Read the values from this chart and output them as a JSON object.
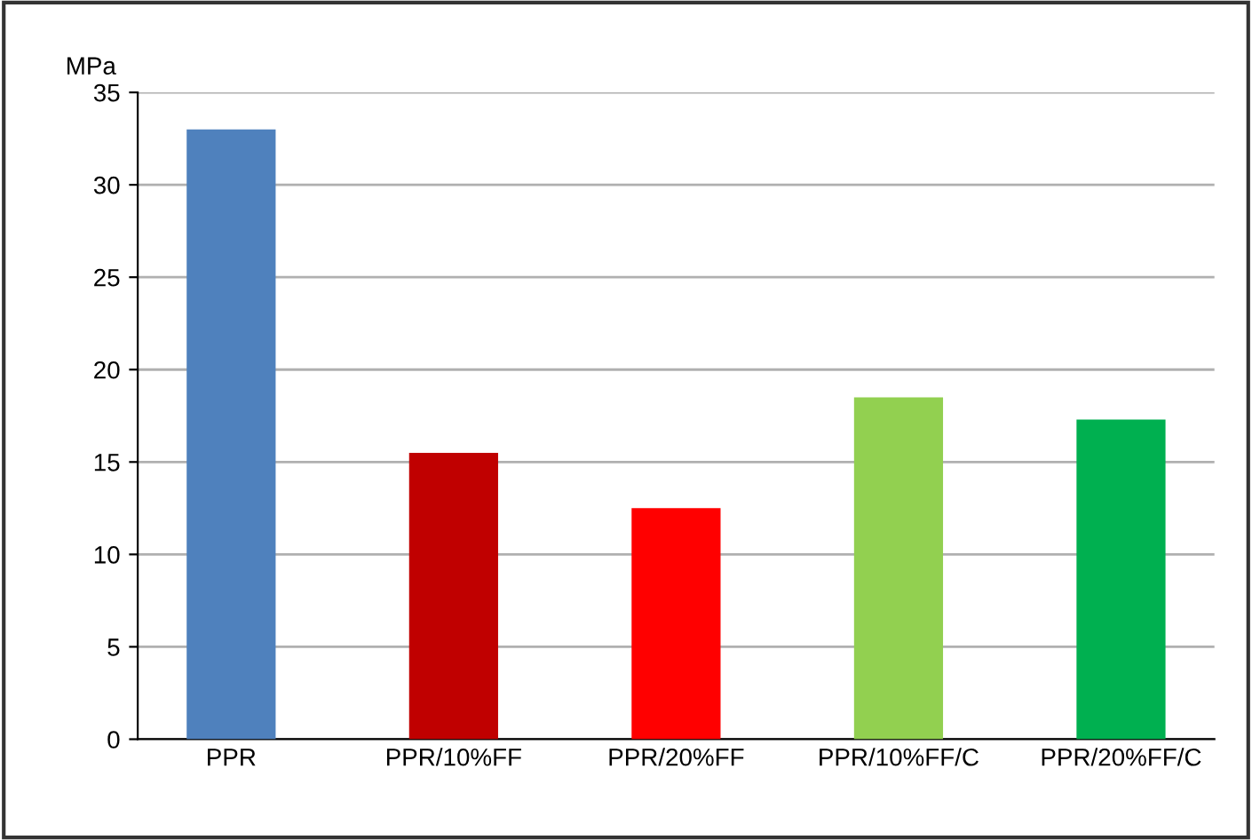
{
  "chart_data": {
    "type": "bar",
    "ylabel": "MPa",
    "categories": [
      "PPR",
      "PPR/10%FF",
      "PPR/20%FF",
      "PPR/10%FF/C",
      "PPR/20%FF/C"
    ],
    "values": [
      33,
      15.5,
      12.5,
      18.5,
      17.3
    ],
    "colors": [
      "#4f81bd",
      "#c00000",
      "#ff0000",
      "#92d050",
      "#00b050"
    ],
    "ylim": [
      0,
      35
    ],
    "yticks": [
      0,
      5,
      10,
      15,
      20,
      25,
      30,
      35
    ],
    "grid": "y",
    "legend": false
  }
}
